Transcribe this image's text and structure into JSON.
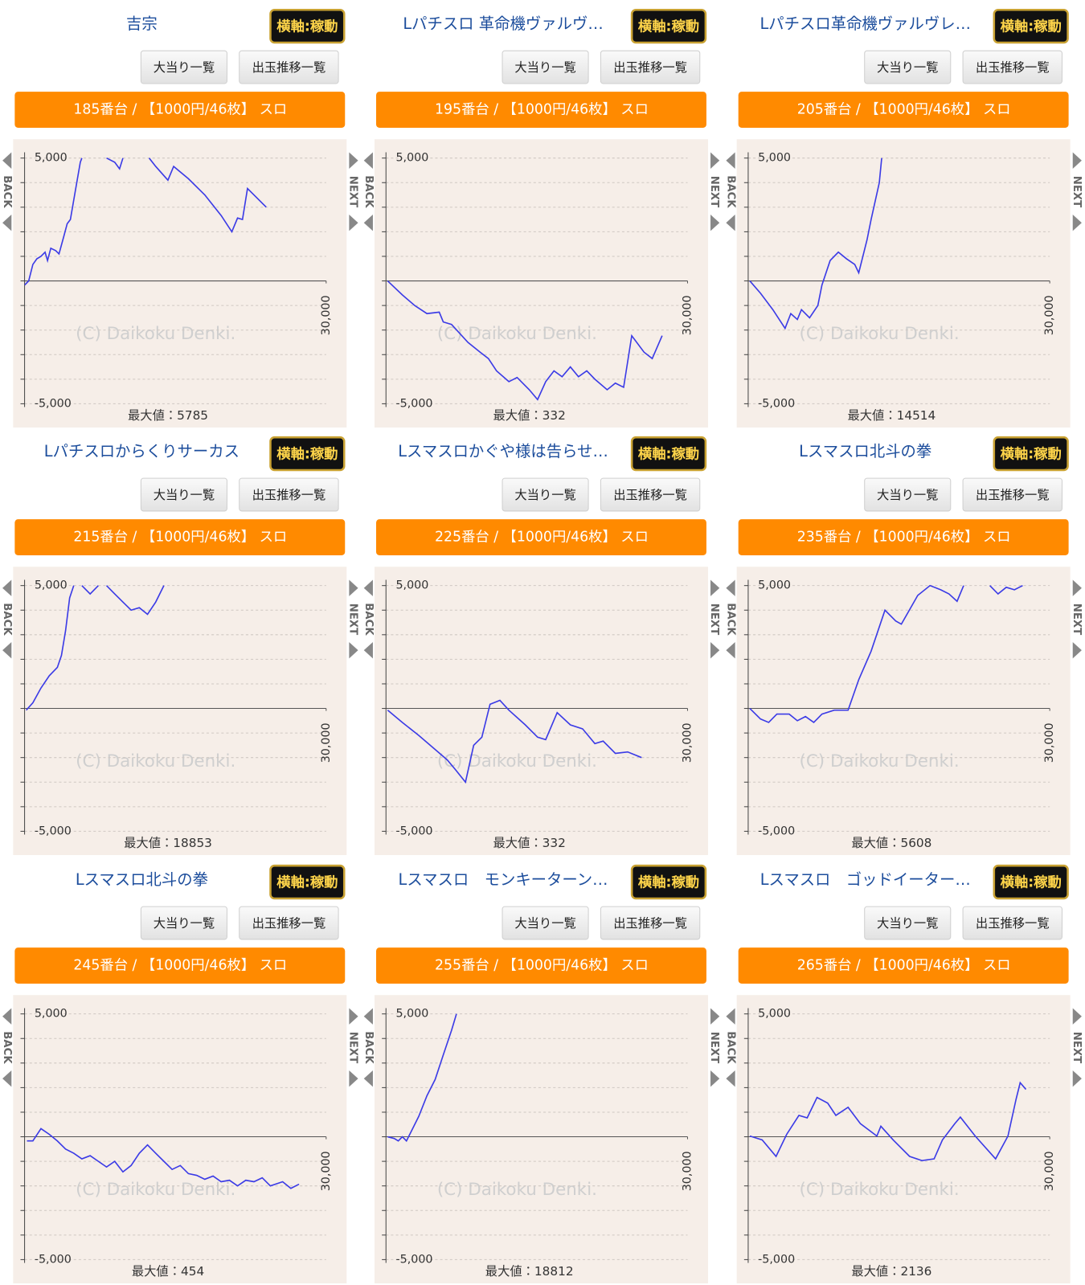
{
  "panels": [
    {
      "title": "吉宗",
      "toggle": "横軸:稼動",
      "buttons": [
        "大当り一覧",
        "出玉推移一覧"
      ],
      "header": "185番台 / 【1000円/46枚】 スロ",
      "back": "BACK",
      "next": "NEXT"
    },
    {
      "title": "Lパチスロ 革命機ヴァルヴ…",
      "toggle": "横軸:稼動",
      "buttons": [
        "大当り一覧",
        "出玉推移一覧"
      ],
      "header": "195番台 / 【1000円/46枚】 スロ",
      "back": "BACK",
      "next": "NEXT"
    },
    {
      "title": "Lパチスロ革命機ヴァルヴレ…",
      "toggle": "横軸:稼動",
      "buttons": [
        "大当り一覧",
        "出玉推移一覧"
      ],
      "header": "205番台 / 【1000円/46枚】 スロ",
      "back": "BACK",
      "next": "NEXT"
    },
    {
      "title": "Lパチスロからくりサーカス",
      "toggle": "横軸:稼動",
      "buttons": [
        "大当り一覧",
        "出玉推移一覧"
      ],
      "header": "215番台 / 【1000円/46枚】 スロ",
      "back": "BACK",
      "next": "NEXT"
    },
    {
      "title": "Lスマスロかぐや様は告らせ…",
      "toggle": "横軸:稼動",
      "buttons": [
        "大当り一覧",
        "出玉推移一覧"
      ],
      "header": "225番台 / 【1000円/46枚】 スロ",
      "back": "BACK",
      "next": "NEXT"
    },
    {
      "title": "Lスマスロ北斗の拳",
      "toggle": "横軸:稼動",
      "buttons": [
        "大当り一覧",
        "出玉推移一覧"
      ],
      "header": "235番台 / 【1000円/46枚】 スロ",
      "back": "BACK",
      "next": "NEXT"
    },
    {
      "title": "Lスマスロ北斗の拳",
      "toggle": "横軸:稼動",
      "buttons": [
        "大当り一覧",
        "出玉推移一覧"
      ],
      "header": "245番台 / 【1000円/46枚】 スロ",
      "back": "BACK",
      "next": "NEXT"
    },
    {
      "title": "Lスマスロ　モンキーターン…",
      "toggle": "横軸:稼動",
      "buttons": [
        "大当り一覧",
        "出玉推移一覧"
      ],
      "header": "255番台 / 【1000円/46枚】 スロ",
      "back": "BACK",
      "next": "NEXT"
    },
    {
      "title": "Lスマスロ　ゴッドイーター…",
      "toggle": "横軸:稼動",
      "buttons": [
        "大当り一覧",
        "出玉推移一覧"
      ],
      "header": "265番台 / 【1000円/46枚】 スロ",
      "back": "BACK",
      "next": "NEXT"
    }
  ],
  "chart_data": [
    {
      "type": "line",
      "color": "#3b3be6",
      "grid": true,
      "xlim": [
        0,
        30000
      ],
      "xticks": [
        {
          "value": 30000,
          "label": "30,000"
        }
      ],
      "ylim": [
        -5000,
        5000
      ],
      "yticks": [
        {
          "value": 5000,
          "label": "5,000"
        },
        {
          "value": -5000,
          "label": "-5,000"
        }
      ],
      "minor_yticks": [
        4000,
        3000,
        2000,
        1000,
        0,
        -1000,
        -2000,
        -3000,
        -4000
      ],
      "watermark": "(C) Daikoku Denki.",
      "max_label": "最大値：5785",
      "x": [
        0,
        410,
        820,
        1220,
        1630,
        2040,
        2280,
        2610,
        3100,
        3420,
        3910,
        4240,
        4560,
        5050,
        5540,
        5700,
        null,
        8150,
        8970,
        9450,
        9780,
        null,
        12390,
        13040,
        14260,
        14830,
        16300,
        17930,
        19560,
        20620,
        21190,
        21680,
        22170,
        22820,
        24040
      ],
      "values": [
        -170,
        0,
        670,
        900,
        1000,
        1170,
        830,
        1330,
        1230,
        1100,
        1830,
        2330,
        2500,
        3660,
        4830,
        5000,
        null,
        5000,
        4830,
        4560,
        5000,
        null,
        5000,
        4660,
        4100,
        4660,
        4160,
        3500,
        2660,
        2000,
        2560,
        2500,
        3760,
        3500,
        3000
      ]
    },
    {
      "type": "line",
      "color": "#3b3be6",
      "grid": true,
      "xlim": [
        0,
        30000
      ],
      "xticks": [
        {
          "value": 30000,
          "label": "30,000"
        }
      ],
      "ylim": [
        -5000,
        5000
      ],
      "yticks": [
        {
          "value": 5000,
          "label": "5,000"
        },
        {
          "value": -5000,
          "label": "-5,000"
        }
      ],
      "minor_yticks": [
        4000,
        3000,
        2000,
        1000,
        0,
        -1000,
        -2000,
        -3000,
        -4000
      ],
      "watermark": "(C) Daikoku Denki.",
      "max_label": "最大値：332",
      "x": [
        160,
        1630,
        2850,
        4080,
        5300,
        5700,
        6520,
        8150,
        9370,
        10190,
        11000,
        12230,
        13040,
        14260,
        15080,
        15890,
        16710,
        17520,
        18340,
        19150,
        19970,
        20780,
        22000,
        22820,
        23640,
        24450,
        25670,
        26490,
        27470
      ],
      "values": [
        0,
        -570,
        -1000,
        -1330,
        -1270,
        -1670,
        -1770,
        -2500,
        -2900,
        -3160,
        -3660,
        -4100,
        -3930,
        -4430,
        -4830,
        -4100,
        -3660,
        -3900,
        -3500,
        -3900,
        -3660,
        -4000,
        -4430,
        -4160,
        -4330,
        -2230,
        -2900,
        -3160,
        -2230
      ]
    },
    {
      "type": "line",
      "color": "#3b3be6",
      "grid": true,
      "xlim": [
        0,
        30000
      ],
      "xticks": [
        {
          "value": 30000,
          "label": "30,000"
        }
      ],
      "ylim": [
        -5000,
        5000
      ],
      "yticks": [
        {
          "value": 5000,
          "label": "5,000"
        },
        {
          "value": -5000,
          "label": "-5,000"
        }
      ],
      "minor_yticks": [
        4000,
        3000,
        2000,
        1000,
        0,
        -1000,
        -2000,
        -3000,
        -4000
      ],
      "watermark": "(C) Daikoku Denki.",
      "max_label": "最大値：14514",
      "x": [
        160,
        1220,
        2450,
        3670,
        4240,
        4890,
        5300,
        6110,
        6930,
        7340,
        8150,
        8970,
        9780,
        10600,
        11000,
        11820,
        12230,
        13040,
        13280
      ],
      "values": [
        0,
        -500,
        -1170,
        -1930,
        -1330,
        -1570,
        -1170,
        -1500,
        -1000,
        -170,
        830,
        1170,
        900,
        670,
        330,
        1670,
        2500,
        4000,
        5000
      ]
    },
    {
      "type": "line",
      "color": "#3b3be6",
      "grid": true,
      "xlim": [
        0,
        30000
      ],
      "xticks": [
        {
          "value": 30000,
          "label": "30,000"
        }
      ],
      "ylim": [
        -5000,
        5000
      ],
      "yticks": [
        {
          "value": 5000,
          "label": "5,000"
        },
        {
          "value": -5000,
          "label": "-5,000"
        }
      ],
      "minor_yticks": [
        4000,
        3000,
        2000,
        1000,
        0,
        -1000,
        -2000,
        -3000,
        -4000
      ],
      "watermark": "(C) Daikoku Denki.",
      "max_label": "最大値：18853",
      "x": [
        160,
        820,
        1630,
        2450,
        3260,
        3670,
        4080,
        4480,
        4890,
        null,
        5700,
        6520,
        7340,
        null,
        8150,
        8970,
        9780,
        10600,
        11410,
        12230,
        13040,
        13860
      ],
      "values": [
        -70,
        230,
        830,
        1330,
        1670,
        2160,
        3160,
        4500,
        5000,
        null,
        5000,
        4660,
        5000,
        null,
        5000,
        4660,
        4330,
        4000,
        4100,
        3830,
        4330,
        5000
      ]
    },
    {
      "type": "line",
      "color": "#3b3be6",
      "grid": true,
      "xlim": [
        0,
        30000
      ],
      "xticks": [
        {
          "value": 30000,
          "label": "30,000"
        }
      ],
      "ylim": [
        -5000,
        5000
      ],
      "yticks": [
        {
          "value": 5000,
          "label": "5,000"
        },
        {
          "value": -5000,
          "label": "-5,000"
        }
      ],
      "minor_yticks": [
        4000,
        3000,
        2000,
        1000,
        0,
        -1000,
        -2000,
        -3000,
        -4000
      ],
      "watermark": "(C) Daikoku Denki.",
      "max_label": "最大値：332",
      "x": [
        160,
        1630,
        3260,
        4890,
        6110,
        6930,
        7910,
        8720,
        9540,
        10350,
        11330,
        12230,
        13860,
        15080,
        15890,
        17030,
        18340,
        19560,
        20780,
        21600,
        22820,
        24040,
        25430
      ],
      "values": [
        -70,
        -570,
        -1100,
        -1670,
        -2100,
        -2500,
        -3000,
        -1500,
        -1170,
        170,
        330,
        -70,
        -670,
        -1170,
        -1270,
        -170,
        -670,
        -830,
        -1430,
        -1330,
        -1830,
        -1770,
        -2000
      ]
    },
    {
      "type": "line",
      "color": "#3b3be6",
      "grid": true,
      "xlim": [
        0,
        30000
      ],
      "xticks": [
        {
          "value": 30000,
          "label": "30,000"
        }
      ],
      "ylim": [
        -5000,
        5000
      ],
      "yticks": [
        {
          "value": 5000,
          "label": "5,000"
        },
        {
          "value": -5000,
          "label": "-5,000"
        }
      ],
      "minor_yticks": [
        4000,
        3000,
        2000,
        1000,
        0,
        -1000,
        -2000,
        -3000,
        -4000
      ],
      "watermark": "(C) Daikoku Denki.",
      "max_label": "最大値：5608",
      "x": [
        160,
        1220,
        2040,
        2850,
        4080,
        4890,
        5700,
        6520,
        7340,
        8560,
        9940,
        11000,
        12230,
        13610,
        14670,
        15240,
        16870,
        18090,
        19150,
        19970,
        20780,
        21430,
        null,
        24040,
        24860,
        25670,
        26490,
        27300
      ],
      "values": [
        0,
        -430,
        -570,
        -230,
        -230,
        -500,
        -330,
        -570,
        -230,
        -70,
        -70,
        1170,
        2330,
        4000,
        3560,
        3430,
        4600,
        5000,
        4830,
        4660,
        4360,
        5000,
        null,
        5000,
        4660,
        4930,
        4830,
        5000
      ]
    },
    {
      "type": "line",
      "color": "#3b3be6",
      "grid": true,
      "xlim": [
        0,
        30000
      ],
      "xticks": [
        {
          "value": 30000,
          "label": "30,000"
        }
      ],
      "ylim": [
        -5000,
        5000
      ],
      "yticks": [
        {
          "value": 5000,
          "label": "5,000"
        },
        {
          "value": -5000,
          "label": "-5,000"
        }
      ],
      "minor_yticks": [
        4000,
        3000,
        2000,
        1000,
        0,
        -1000,
        -2000,
        -3000,
        -4000
      ],
      "watermark": "(C) Daikoku Denki.",
      "max_label": "最大値：454",
      "x": [
        240,
        820,
        1630,
        2450,
        3260,
        4080,
        4890,
        5700,
        6520,
        7340,
        8150,
        8970,
        9780,
        10600,
        11410,
        12230,
        13040,
        13860,
        14670,
        15490,
        16300,
        17120,
        17930,
        18750,
        19560,
        20380,
        21190,
        22000,
        22820,
        23640,
        24450,
        25670,
        26490,
        27300
      ],
      "values": [
        -170,
        -170,
        330,
        100,
        -170,
        -500,
        -670,
        -900,
        -770,
        -1000,
        -1230,
        -1000,
        -1430,
        -1170,
        -670,
        -330,
        -670,
        -1000,
        -1330,
        -1170,
        -1500,
        -1570,
        -1730,
        -1600,
        -1830,
        -1770,
        -2000,
        -1770,
        -1830,
        -1670,
        -2000,
        -1830,
        -2100,
        -1930
      ]
    },
    {
      "type": "line",
      "color": "#3b3be6",
      "grid": true,
      "xlim": [
        0,
        30000
      ],
      "xticks": [
        {
          "value": 30000,
          "label": "30,000"
        }
      ],
      "ylim": [
        -5000,
        5000
      ],
      "yticks": [
        {
          "value": 5000,
          "label": "5,000"
        },
        {
          "value": -5000,
          "label": "-5,000"
        }
      ],
      "minor_yticks": [
        4000,
        3000,
        2000,
        1000,
        0,
        -1000,
        -2000,
        -3000,
        -4000
      ],
      "watermark": "(C) Daikoku Denki.",
      "max_label": "最大値：18812",
      "x": [
        160,
        820,
        1220,
        1630,
        2040,
        2450,
        3260,
        4080,
        4890,
        5700,
        6520,
        7010
      ],
      "values": [
        0,
        -70,
        -170,
        0,
        -170,
        170,
        830,
        1670,
        2330,
        3330,
        4330,
        5000
      ]
    },
    {
      "type": "line",
      "color": "#3b3be6",
      "grid": true,
      "xlim": [
        0,
        30000
      ],
      "xticks": [
        {
          "value": 30000,
          "label": "30,000"
        }
      ],
      "ylim": [
        -5000,
        5000
      ],
      "yticks": [
        {
          "value": 5000,
          "label": "5,000"
        },
        {
          "value": -5000,
          "label": "-5,000"
        }
      ],
      "minor_yticks": [
        4000,
        3000,
        2000,
        1000,
        0,
        -1000,
        -2000,
        -3000,
        -4000
      ],
      "watermark": "(C) Daikoku Denki.",
      "max_label": "最大値：2136",
      "x": [
        160,
        1390,
        2770,
        3830,
        5050,
        5870,
        6850,
        7910,
        8720,
        9940,
        11170,
        12800,
        13200,
        14430,
        16060,
        17280,
        18500,
        19320,
        20540,
        21110,
        22580,
        24610,
        25840,
        26650,
        27060,
        27630
      ],
      "values": [
        30,
        -130,
        -800,
        100,
        870,
        770,
        1600,
        1370,
        870,
        1200,
        530,
        30,
        430,
        -130,
        -800,
        -970,
        -900,
        -130,
        530,
        800,
        30,
        -900,
        30,
        1530,
        2200,
        1930
      ]
    }
  ]
}
